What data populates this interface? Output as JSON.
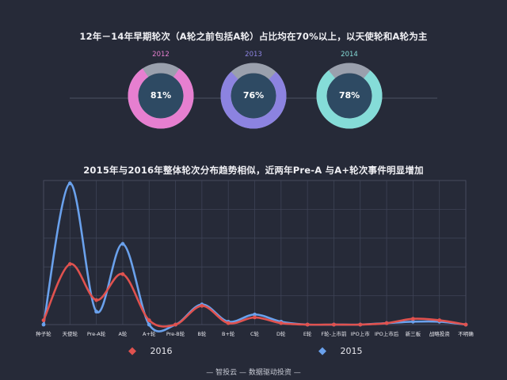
{
  "title_top": "12年－14年早期轮次（A轮之前包括A轮）占比均在70%以上，以天使轮和A轮为主",
  "title_chart": "2015年与2016年整体轮次分布趋势相似，近两年Pre-A 与A+轮次事件明显增加",
  "footer": "— 智投云 — 数据驱动投资 —",
  "donuts": [
    {
      "year": "2012",
      "percent_label": "81%",
      "value": 81,
      "color": "#e67fd0"
    },
    {
      "year": "2013",
      "percent_label": "76%",
      "value": 76,
      "color": "#8c83e0"
    },
    {
      "year": "2014",
      "percent_label": "78%",
      "value": 78,
      "color": "#85dcd8"
    }
  ],
  "chart_data": {
    "type": "line",
    "title": "2015年与2016年整体轮次分布趋势相似，近两年Pre-A 与A+轮次事件明显增加",
    "categories": [
      "种子轮",
      "天使轮",
      "Pre-A轮",
      "A轮",
      "A+轮",
      "Pre-B轮",
      "B轮",
      "B+轮",
      "C轮",
      "D轮",
      "E轮",
      "F轮-上市前",
      "IPO上市",
      "IPO上市后",
      "新三板",
      "战略投资",
      "不明确"
    ],
    "ylim": [
      0,
      100
    ],
    "grid": true,
    "legend": "bottom",
    "series": [
      {
        "name": "2016",
        "color": "#e0524f",
        "values": [
          3,
          42,
          17,
          35,
          3,
          0,
          13,
          1,
          5,
          1,
          0,
          0,
          0,
          1,
          4,
          3,
          0
        ]
      },
      {
        "name": "2015",
        "color": "#6aa1ec",
        "values": [
          0,
          98,
          9,
          56,
          0,
          0,
          14,
          2,
          7,
          2,
          0,
          0,
          0,
          1,
          2,
          2,
          0
        ]
      }
    ]
  }
}
